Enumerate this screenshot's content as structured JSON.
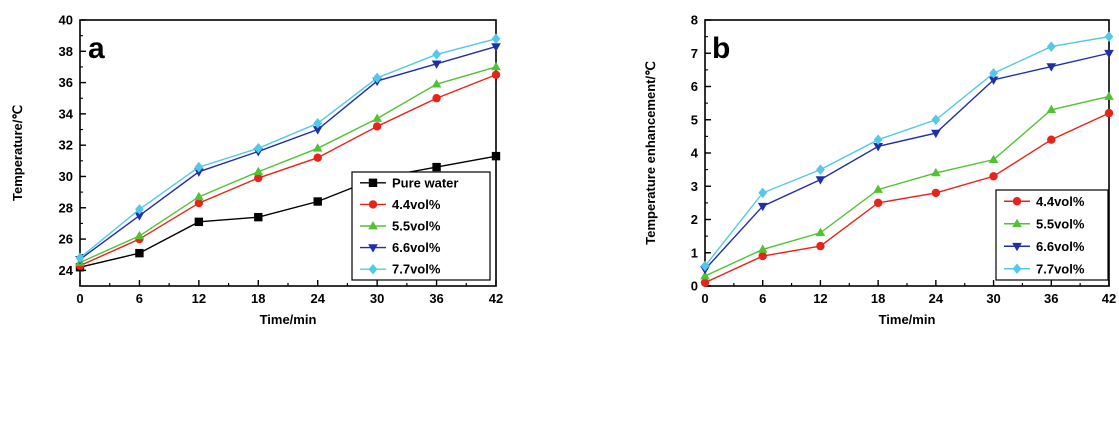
{
  "chart_data": [
    {
      "type": "line",
      "panel_label": "a",
      "xlabel": "Time/min",
      "ylabel": "Temperature/℃",
      "xlim": [
        0,
        42
      ],
      "ylim": [
        23,
        40
      ],
      "x_ticks": [
        0,
        6,
        12,
        18,
        24,
        30,
        36,
        42
      ],
      "y_ticks": [
        24,
        26,
        28,
        30,
        32,
        34,
        36,
        38,
        40
      ],
      "grid": false,
      "legend_position": "bottom-right",
      "x": [
        0,
        6,
        12,
        18,
        24,
        30,
        36,
        42
      ],
      "series": [
        {
          "name": "Pure water",
          "marker": "square",
          "color": "#000000",
          "values": [
            24.2,
            25.1,
            27.1,
            27.4,
            28.4,
            29.9,
            30.6,
            31.3
          ]
        },
        {
          "name": "4.4vol%",
          "marker": "circle",
          "color": "#e8231a",
          "values": [
            24.3,
            26.0,
            28.3,
            29.9,
            31.2,
            33.2,
            35.0,
            36.5
          ]
        },
        {
          "name": "5.5vol%",
          "marker": "triangle-up",
          "color": "#52c234",
          "values": [
            24.5,
            26.2,
            28.7,
            30.3,
            31.8,
            33.7,
            35.9,
            37.0
          ]
        },
        {
          "name": "6.6vol%",
          "marker": "triangle-down",
          "color": "#1f2fa8",
          "values": [
            24.7,
            27.5,
            30.3,
            31.6,
            33.0,
            36.1,
            37.2,
            38.3
          ]
        },
        {
          "name": "7.7vol%",
          "marker": "diamond",
          "color": "#54c8e8",
          "values": [
            24.8,
            27.9,
            30.6,
            31.8,
            33.4,
            36.3,
            37.8,
            38.8
          ]
        }
      ]
    },
    {
      "type": "line",
      "panel_label": "b",
      "xlabel": "Time/min",
      "ylabel": "Temperature  enhancement/℃",
      "xlim": [
        0,
        42
      ],
      "ylim": [
        0,
        8
      ],
      "x_ticks": [
        0,
        6,
        12,
        18,
        24,
        30,
        36,
        42
      ],
      "y_ticks": [
        0,
        1,
        2,
        3,
        4,
        5,
        6,
        7,
        8
      ],
      "grid": false,
      "legend_position": "bottom-right",
      "x": [
        0,
        6,
        12,
        18,
        24,
        30,
        36,
        42
      ],
      "series": [
        {
          "name": "4.4vol%",
          "marker": "circle",
          "color": "#e8231a",
          "values": [
            0.1,
            0.9,
            1.2,
            2.5,
            2.8,
            3.3,
            4.4,
            5.2
          ]
        },
        {
          "name": "5.5vol%",
          "marker": "triangle-up",
          "color": "#52c234",
          "values": [
            0.3,
            1.1,
            1.6,
            2.9,
            3.4,
            3.8,
            5.3,
            5.7
          ]
        },
        {
          "name": "6.6vol%",
          "marker": "triangle-down",
          "color": "#1f2fa8",
          "values": [
            0.5,
            2.4,
            3.2,
            4.2,
            4.6,
            6.2,
            6.6,
            7.0
          ]
        },
        {
          "name": "7.7vol%",
          "marker": "diamond",
          "color": "#54c8e8",
          "values": [
            0.6,
            2.8,
            3.5,
            4.4,
            5.0,
            6.4,
            7.2,
            7.5
          ]
        }
      ]
    }
  ]
}
